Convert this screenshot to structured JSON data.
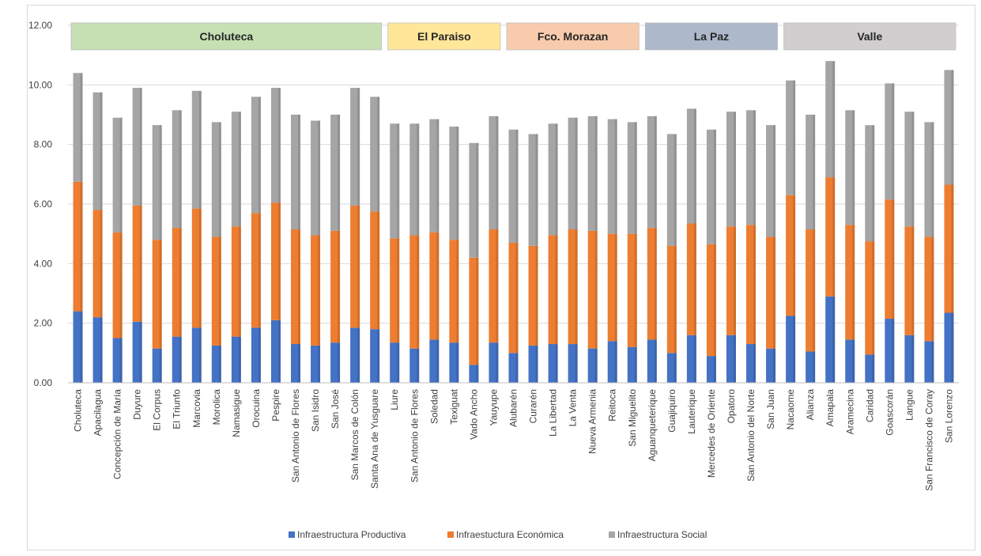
{
  "chart_data": {
    "type": "bar",
    "stacked": true,
    "ylim": [
      0,
      12
    ],
    "yticks": [
      "0.00",
      "2.00",
      "4.00",
      "6.00",
      "8.00",
      "10.00",
      "12.00"
    ],
    "grid": true,
    "legend_position": "bottom",
    "categories": [
      "Choluteca",
      "Apacilagua",
      "Concepción de María",
      "Duyure",
      "El Corpus",
      "El Triunfo",
      "Marcovia",
      "Morolica",
      "Namasigue",
      "Orocuina",
      "Pespire",
      "San Antonio de Flores",
      "San Isidro",
      "San José",
      "San Marcos de Colón",
      "Santa Ana de Yusguare",
      "Liure",
      "San Antonio de Flores",
      "Soledad",
      "Texiguat",
      "Vado Ancho",
      "Yauyupe",
      "Alubarén",
      "Curarén",
      "La Libertad",
      "La Venta",
      "Nueva Armenia",
      "Reitoca",
      "San Miguelito",
      "Aguanqueterique",
      "Guajiquiro",
      "Lauterique",
      "Mercedes de Oriente",
      "Opatoro",
      "San Antonio del Norte",
      "San Juan",
      "Nacaome",
      "Alianza",
      "Amapala",
      "Aramecina",
      "Caridad",
      "Goascorán",
      "Langue",
      "San Francisco de Coray",
      "San Lorenzo"
    ],
    "groups": [
      {
        "label": "Choluteca",
        "start": 0,
        "end": 15,
        "color": "#c6e0b4"
      },
      {
        "label": "El Paraiso",
        "start": 16,
        "end": 21,
        "color": "#ffe699"
      },
      {
        "label": "Fco. Morazan",
        "start": 22,
        "end": 28,
        "color": "#f8cbad"
      },
      {
        "label": "La Paz",
        "start": 29,
        "end": 35,
        "color": "#adb9ca"
      },
      {
        "label": "Valle",
        "start": 36,
        "end": 44,
        "color": "#d0cece"
      }
    ],
    "series": [
      {
        "name": "Infraestructura Productiva",
        "color": "#4472c4",
        "values": [
          2.4,
          2.2,
          1.5,
          2.05,
          1.15,
          1.55,
          1.85,
          1.25,
          1.55,
          1.85,
          2.1,
          1.3,
          1.25,
          1.35,
          1.85,
          1.8,
          1.35,
          1.15,
          1.45,
          1.35,
          0.6,
          1.35,
          1.0,
          1.25,
          1.3,
          1.3,
          1.15,
          1.4,
          1.2,
          1.45,
          1.0,
          1.6,
          0.9,
          1.6,
          1.3,
          1.15,
          2.25,
          1.05,
          2.9,
          1.45,
          0.95,
          2.15,
          1.6,
          1.4,
          2.35
        ]
      },
      {
        "name": "Infraestuctura Económica",
        "color": "#ed7d31",
        "values": [
          4.35,
          3.6,
          3.55,
          3.9,
          3.65,
          3.65,
          4.0,
          3.65,
          3.7,
          3.85,
          3.95,
          3.85,
          3.7,
          3.75,
          4.1,
          3.95,
          3.5,
          3.8,
          3.6,
          3.45,
          3.6,
          3.8,
          3.7,
          3.35,
          3.65,
          3.85,
          3.95,
          3.6,
          3.8,
          3.75,
          3.6,
          3.75,
          3.75,
          3.65,
          4.0,
          3.75,
          4.05,
          4.1,
          4.0,
          3.85,
          3.8,
          4.0,
          3.65,
          3.5,
          4.3
        ]
      },
      {
        "name": "Infraestructura Social",
        "color": "#a5a5a5",
        "values": [
          3.65,
          3.95,
          3.85,
          3.95,
          3.85,
          3.95,
          3.95,
          3.85,
          3.85,
          3.9,
          3.85,
          3.85,
          3.85,
          3.9,
          3.95,
          3.85,
          3.85,
          3.75,
          3.8,
          3.8,
          3.85,
          3.8,
          3.8,
          3.75,
          3.75,
          3.75,
          3.85,
          3.85,
          3.75,
          3.75,
          3.75,
          3.85,
          3.85,
          3.85,
          3.85,
          3.75,
          3.85,
          3.85,
          3.9,
          3.85,
          3.9,
          3.9,
          3.85,
          3.85,
          3.85
        ]
      }
    ]
  }
}
